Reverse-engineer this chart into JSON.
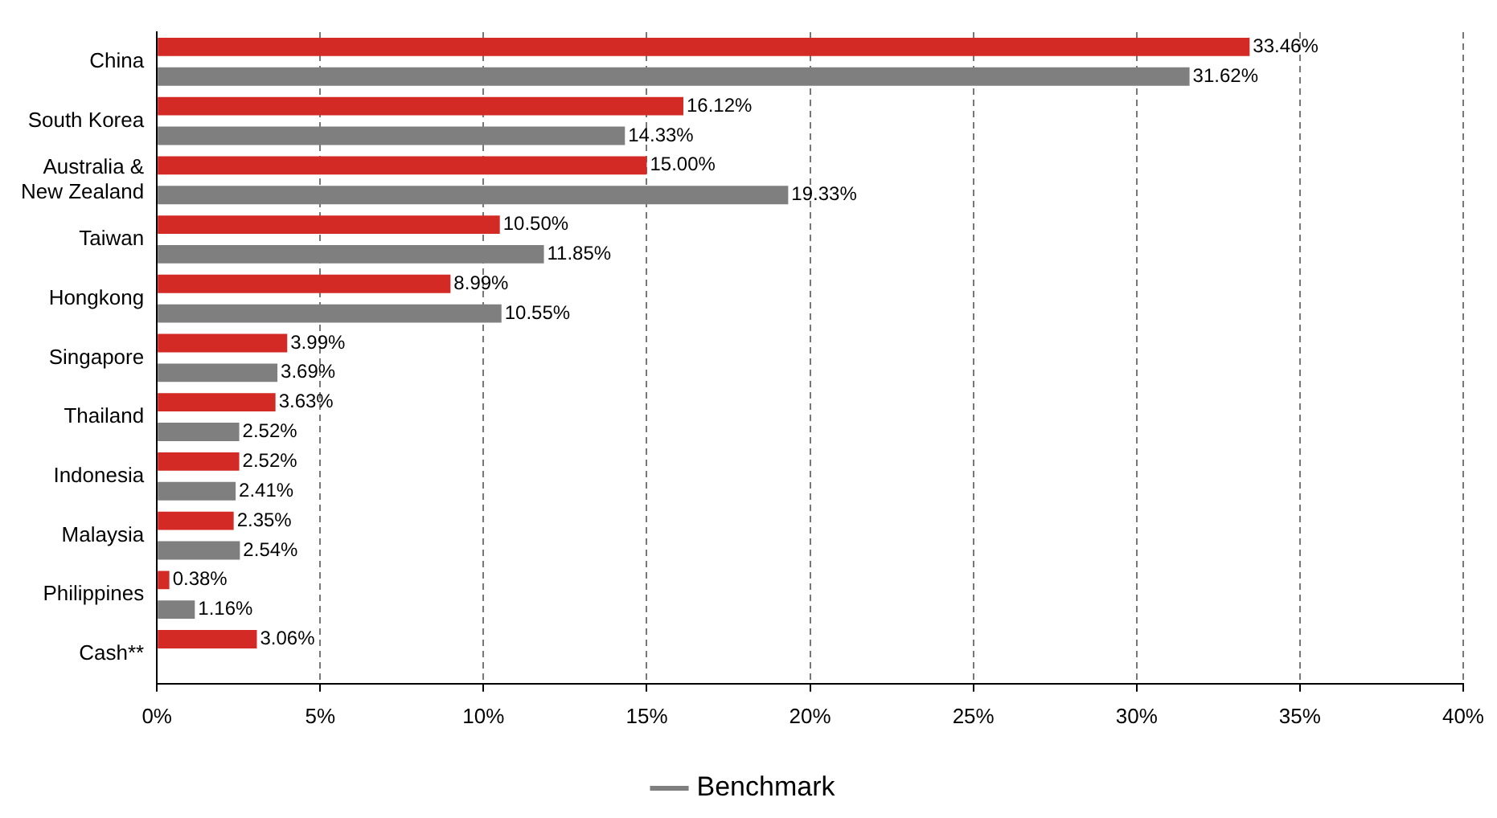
{
  "chart_data": {
    "type": "bar",
    "orientation": "horizontal",
    "categories": [
      "China",
      "South Korea",
      "Australia & New Zealand",
      "Taiwan",
      "Hongkong",
      "Singapore",
      "Thailand",
      "Indonesia",
      "Malaysia",
      "Philippines",
      "Cash**"
    ],
    "series": [
      {
        "color": "#d42a25",
        "values": [
          33.46,
          16.12,
          15.0,
          10.5,
          8.99,
          3.99,
          3.63,
          2.52,
          2.35,
          0.38,
          3.06
        ],
        "value_labels": [
          "33.46%",
          "16.12%",
          "15.00%",
          "10.50%",
          "8.99%",
          "3.99%",
          "3.63%",
          "2.52%",
          "2.35%",
          "0.38%",
          "3.06%"
        ]
      },
      {
        "name": "Benchmark",
        "color": "#7f7f7f",
        "values": [
          31.62,
          14.33,
          19.33,
          11.85,
          10.55,
          3.69,
          2.52,
          2.41,
          2.54,
          1.16,
          null
        ],
        "value_labels": [
          "31.62%",
          "14.33%",
          "19.33%",
          "11.85%",
          "10.55%",
          "3.69%",
          "2.52%",
          "2.41%",
          "2.54%",
          "1.16%",
          null
        ]
      }
    ],
    "xlim": [
      0,
      40
    ],
    "xticks": [
      {
        "value": 0,
        "label": "0%"
      },
      {
        "value": 5,
        "label": "5%"
      },
      {
        "value": 10,
        "label": "10%"
      },
      {
        "value": 15,
        "label": "15%"
      },
      {
        "value": 20,
        "label": "20%"
      },
      {
        "value": 25,
        "label": "25%"
      },
      {
        "value": 30,
        "label": "30%"
      },
      {
        "value": 35,
        "label": "35%"
      },
      {
        "value": 40,
        "label": "40%"
      }
    ],
    "grid": "x",
    "legend": "bottom"
  }
}
